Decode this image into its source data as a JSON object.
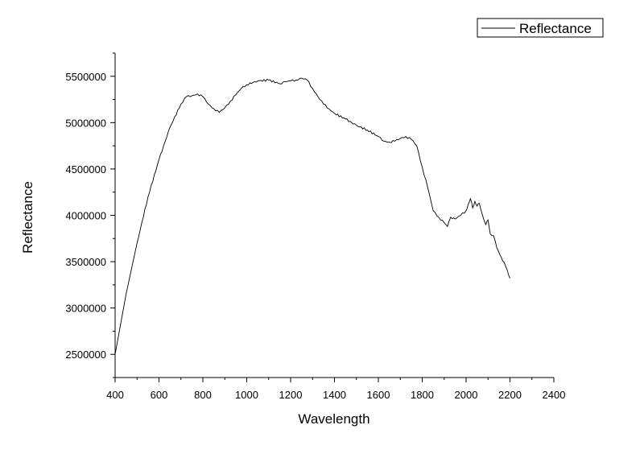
{
  "chart_data": {
    "type": "line",
    "xlabel": "Wavelength",
    "ylabel": "Reflectance",
    "xlim": [
      400,
      2400
    ],
    "ylim": [
      2250000,
      5750000
    ],
    "x_ticks": [
      400,
      600,
      800,
      1000,
      1200,
      1400,
      1600,
      1800,
      2000,
      2200,
      2400
    ],
    "y_ticks": [
      2500000,
      3000000,
      3500000,
      4000000,
      4500000,
      5000000,
      5500000
    ],
    "grid": false,
    "legend_position": "top-right",
    "line_color": "#000000",
    "series": [
      {
        "name": "Reflectance",
        "x": [
          400,
          450,
          500,
          550,
          600,
          650,
          700,
          725,
          750,
          775,
          800,
          825,
          850,
          875,
          900,
          925,
          950,
          975,
          1000,
          1050,
          1100,
          1150,
          1175,
          1200,
          1225,
          1250,
          1275,
          1300,
          1325,
          1350,
          1375,
          1400,
          1450,
          1500,
          1550,
          1600,
          1625,
          1650,
          1675,
          1700,
          1725,
          1750,
          1775,
          1800,
          1825,
          1850,
          1875,
          1900,
          1915,
          1930,
          1950,
          1975,
          2000,
          2010,
          2020,
          2030,
          2040,
          2050,
          2060,
          2075,
          2090,
          2100,
          2110,
          2125,
          2140,
          2160,
          2180,
          2200
        ],
        "y": [
          2500000,
          3150000,
          3700000,
          4200000,
          4600000,
          4950000,
          5200000,
          5280000,
          5290000,
          5310000,
          5280000,
          5200000,
          5150000,
          5110000,
          5160000,
          5230000,
          5300000,
          5370000,
          5410000,
          5450000,
          5460000,
          5420000,
          5440000,
          5450000,
          5460000,
          5480000,
          5460000,
          5370000,
          5280000,
          5200000,
          5150000,
          5100000,
          5040000,
          4970000,
          4920000,
          4850000,
          4800000,
          4790000,
          4800000,
          4830000,
          4850000,
          4820000,
          4750000,
          4520000,
          4300000,
          4050000,
          3980000,
          3920000,
          3880000,
          3980000,
          3960000,
          4000000,
          4050000,
          4120000,
          4180000,
          4080000,
          4150000,
          4100000,
          4130000,
          4000000,
          3900000,
          3950000,
          3800000,
          3780000,
          3650000,
          3550000,
          3450000,
          3320000
        ]
      }
    ]
  }
}
